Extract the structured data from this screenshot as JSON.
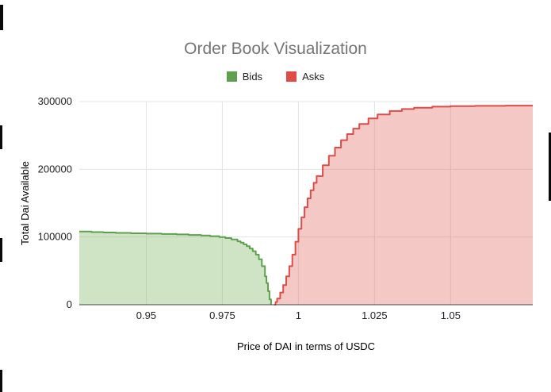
{
  "header": {
    "title": "Order Book Visualization"
  },
  "legend": {
    "items": [
      {
        "label": "Bids",
        "color": "#5fa04e"
      },
      {
        "label": "Asks",
        "color": "#df4b47"
      }
    ]
  },
  "chart_data": {
    "type": "area",
    "title": "Order Book Visualization",
    "xlabel": "Price of DAI in terms of USDC",
    "ylabel": "Total Dai Available",
    "xlim": [
      0.928,
      1.077
    ],
    "ylim": [
      0,
      300000
    ],
    "x_ticks": {
      "values": [
        0.95,
        0.975,
        1,
        1.025,
        1.05
      ],
      "labels": [
        "0.95",
        "0.975",
        "1",
        "1.025",
        "1.05"
      ]
    },
    "y_ticks": {
      "values": [
        0,
        100000,
        200000,
        300000
      ],
      "labels": [
        "0",
        "100000",
        "200000",
        "300000"
      ]
    },
    "grid": true,
    "legend_position": "top",
    "interpolation": "step",
    "colors": {
      "bids_stroke": "#5fa04e",
      "bids_fill": "rgba(118,178,85,0.35)",
      "asks_stroke": "#df4b47",
      "asks_fill": "rgba(224,96,90,0.35)",
      "gridline": "#e3e3e3",
      "axis_line": "#424242",
      "title_text": "#757575"
    },
    "series": [
      {
        "name": "Bids",
        "stroke": "#5fa04e",
        "fill": "rgba(118,178,85,0.35)",
        "points": [
          [
            0.928,
            108000
          ],
          [
            0.932,
            107200
          ],
          [
            0.936,
            106600
          ],
          [
            0.94,
            106000
          ],
          [
            0.945,
            105500
          ],
          [
            0.95,
            105000
          ],
          [
            0.955,
            104400
          ],
          [
            0.96,
            103800
          ],
          [
            0.964,
            103000
          ],
          [
            0.968,
            102200
          ],
          [
            0.971,
            101200
          ],
          [
            0.974,
            100000
          ],
          [
            0.976,
            98400
          ],
          [
            0.978,
            96400
          ],
          [
            0.98,
            93600
          ],
          [
            0.981,
            91600
          ],
          [
            0.982,
            89200
          ],
          [
            0.983,
            86400
          ],
          [
            0.984,
            83000
          ],
          [
            0.985,
            79000
          ],
          [
            0.986,
            74000
          ],
          [
            0.987,
            67000
          ],
          [
            0.988,
            57000
          ],
          [
            0.989,
            42000
          ],
          [
            0.9895,
            32000
          ],
          [
            0.99,
            20000
          ],
          [
            0.9905,
            8000
          ],
          [
            0.991,
            0
          ]
        ]
      },
      {
        "name": "Asks",
        "stroke": "#df4b47",
        "fill": "rgba(224,96,90,0.35)",
        "points": [
          [
            0.992,
            0
          ],
          [
            0.9925,
            4000
          ],
          [
            0.993,
            9000
          ],
          [
            0.994,
            18000
          ],
          [
            0.995,
            29000
          ],
          [
            0.996,
            42000
          ],
          [
            0.997,
            57000
          ],
          [
            0.998,
            74000
          ],
          [
            0.999,
            93000
          ],
          [
            1.0,
            112000
          ],
          [
            1.001,
            129000
          ],
          [
            1.002,
            144000
          ],
          [
            1.003,
            157000
          ],
          [
            1.004,
            169000
          ],
          [
            1.005,
            180000
          ],
          [
            1.006,
            190000
          ],
          [
            1.008,
            206000
          ],
          [
            1.01,
            220000
          ],
          [
            1.012,
            232000
          ],
          [
            1.014,
            243000
          ],
          [
            1.016,
            252000
          ],
          [
            1.018,
            260000
          ],
          [
            1.02,
            267000
          ],
          [
            1.023,
            275000
          ],
          [
            1.026,
            281000
          ],
          [
            1.03,
            286000
          ],
          [
            1.034,
            289000
          ],
          [
            1.038,
            291000
          ],
          [
            1.044,
            292500
          ],
          [
            1.05,
            293200
          ],
          [
            1.058,
            293700
          ],
          [
            1.068,
            294000
          ],
          [
            1.077,
            294000
          ]
        ]
      }
    ]
  }
}
